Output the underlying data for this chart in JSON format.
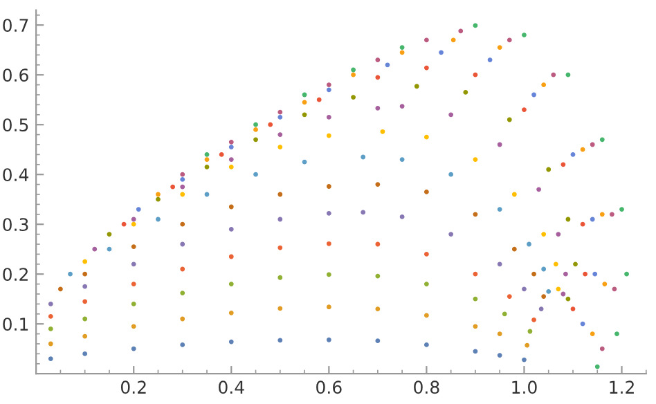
{
  "chart_data": {
    "type": "scatter",
    "marker": "circle",
    "grid": false,
    "legend": false,
    "xlim": [
      0,
      1.25
    ],
    "ylim": [
      0,
      0.73
    ],
    "xticks": [
      0.2,
      0.4,
      0.6,
      0.8,
      {
        "value": 1.0,
        "label": "1.0"
      },
      1.2
    ],
    "yticks": [
      0.1,
      0.2,
      0.3,
      0.4,
      0.5,
      0.6,
      0.7
    ],
    "series": [
      {
        "color": "#5e81b5",
        "x": [
          0.03,
          0.1,
          0.2,
          0.3,
          0.4,
          0.5,
          0.6,
          0.7,
          0.8,
          0.9,
          0.95,
          1.0
        ],
        "values": [
          0.03,
          0.04,
          0.05,
          0.058,
          0.064,
          0.067,
          0.068,
          0.066,
          0.058,
          0.045,
          0.037,
          0.028
        ]
      },
      {
        "color": "#e19c24",
        "x": [
          0.03,
          0.1,
          0.2,
          0.3,
          0.4,
          0.5,
          0.6,
          0.7,
          0.8,
          0.9,
          0.95,
          1.006
        ],
        "values": [
          0.06,
          0.075,
          0.095,
          0.11,
          0.122,
          0.131,
          0.134,
          0.13,
          0.117,
          0.095,
          0.08,
          0.057
        ]
      },
      {
        "color": "#8fb032",
        "x": [
          0.03,
          0.1,
          0.2,
          0.3,
          0.4,
          0.5,
          0.6,
          0.7,
          0.8,
          0.9,
          0.96,
          1.012
        ],
        "values": [
          0.09,
          0.11,
          0.14,
          0.162,
          0.18,
          0.193,
          0.199,
          0.196,
          0.18,
          0.15,
          0.12,
          0.085
        ]
      },
      {
        "color": "#eb6235",
        "x": [
          0.03,
          0.1,
          0.2,
          0.3,
          0.4,
          0.5,
          0.6,
          0.7,
          0.8,
          0.9,
          0.97,
          1.02
        ],
        "values": [
          0.115,
          0.145,
          0.18,
          0.21,
          0.235,
          0.253,
          0.261,
          0.26,
          0.24,
          0.2,
          0.155,
          0.108
        ]
      },
      {
        "color": "#8778b3",
        "x": [
          0.03,
          0.1,
          0.2,
          0.3,
          0.4,
          0.5,
          0.6,
          0.67,
          0.75,
          0.85,
          0.95,
          1.0,
          1.035
        ],
        "values": [
          0.14,
          0.175,
          0.22,
          0.26,
          0.29,
          0.31,
          0.322,
          0.324,
          0.315,
          0.28,
          0.22,
          0.17,
          0.13
        ]
      },
      {
        "color": "#c56e1a",
        "x": [
          0.05,
          0.1,
          0.2,
          0.3,
          0.4,
          0.5,
          0.6,
          0.7,
          0.8,
          0.9,
          0.98,
          1.02,
          1.04
        ],
        "values": [
          0.17,
          0.2,
          0.255,
          0.3,
          0.335,
          0.36,
          0.376,
          0.38,
          0.365,
          0.32,
          0.25,
          0.2,
          0.155
        ]
      },
      {
        "color": "#5d9ec7",
        "x": [
          0.07,
          0.15,
          0.25,
          0.35,
          0.45,
          0.55,
          0.67,
          0.75,
          0.85,
          0.95,
          1.01,
          1.04,
          1.05
        ],
        "values": [
          0.2,
          0.25,
          0.31,
          0.36,
          0.4,
          0.425,
          0.435,
          0.43,
          0.4,
          0.33,
          0.26,
          0.21,
          0.165
        ]
      },
      {
        "color": "#ffbf00",
        "x": [
          0.1,
          0.2,
          0.3,
          0.4,
          0.5,
          0.6,
          0.71,
          0.8,
          0.9,
          0.98,
          1.04,
          1.065,
          1.07
        ],
        "values": [
          0.225,
          0.3,
          0.36,
          0.415,
          0.455,
          0.478,
          0.486,
          0.475,
          0.43,
          0.36,
          0.28,
          0.22,
          0.17
        ]
      },
      {
        "color": "#a5609d",
        "x": [
          0.12,
          0.2,
          0.3,
          0.4,
          0.5,
          0.6,
          0.7,
          0.75,
          0.85,
          0.95,
          1.03,
          1.07,
          1.085,
          1.08
        ],
        "values": [
          0.25,
          0.31,
          0.375,
          0.43,
          0.48,
          0.515,
          0.533,
          0.537,
          0.52,
          0.46,
          0.37,
          0.28,
          0.2,
          0.16
        ]
      },
      {
        "color": "#929600",
        "x": [
          0.15,
          0.25,
          0.35,
          0.45,
          0.55,
          0.65,
          0.78,
          0.88,
          0.97,
          1.05,
          1.09,
          1.105,
          1.09
        ],
        "values": [
          0.28,
          0.35,
          0.415,
          0.47,
          0.52,
          0.555,
          0.577,
          0.565,
          0.51,
          0.41,
          0.31,
          0.22,
          0.15
        ]
      },
      {
        "color": "#e95536",
        "x": [
          0.18,
          0.28,
          0.38,
          0.48,
          0.58,
          0.7,
          0.8,
          0.9,
          1.0,
          1.08,
          1.12,
          1.125,
          1.1
        ],
        "values": [
          0.3,
          0.375,
          0.44,
          0.5,
          0.55,
          0.595,
          0.614,
          0.6,
          0.53,
          0.42,
          0.3,
          0.2,
          0.13
        ]
      },
      {
        "color": "#6685d9",
        "x": [
          0.21,
          0.3,
          0.4,
          0.5,
          0.6,
          0.72,
          0.83,
          0.93,
          1.02,
          1.1,
          1.14,
          1.145,
          1.12
        ],
        "values": [
          0.33,
          0.39,
          0.455,
          0.515,
          0.57,
          0.62,
          0.645,
          0.63,
          0.56,
          0.44,
          0.31,
          0.2,
          0.1
        ]
      },
      {
        "color": "#f89f13",
        "x": [
          0.25,
          0.35,
          0.45,
          0.55,
          0.65,
          0.75,
          0.855,
          0.95,
          1.04,
          1.12,
          1.16,
          1.165,
          1.14
        ],
        "values": [
          0.36,
          0.43,
          0.49,
          0.545,
          0.6,
          0.645,
          0.67,
          0.655,
          0.58,
          0.45,
          0.32,
          0.18,
          0.08
        ]
      },
      {
        "color": "#bc5b80",
        "x": [
          0.3,
          0.4,
          0.5,
          0.6,
          0.7,
          0.8,
          0.87,
          0.97,
          1.06,
          1.14,
          1.18,
          1.185,
          1.16
        ],
        "values": [
          0.4,
          0.465,
          0.525,
          0.58,
          0.63,
          0.67,
          0.688,
          0.67,
          0.6,
          0.46,
          0.32,
          0.17,
          0.05
        ]
      },
      {
        "color": "#47b66d",
        "x": [
          0.35,
          0.45,
          0.55,
          0.65,
          0.75,
          0.9,
          1.0,
          1.09,
          1.16,
          1.2,
          1.21,
          1.19,
          1.15
        ],
        "values": [
          0.44,
          0.5,
          0.56,
          0.61,
          0.655,
          0.699,
          0.68,
          0.6,
          0.47,
          0.33,
          0.2,
          0.08,
          0.014
        ]
      }
    ]
  }
}
